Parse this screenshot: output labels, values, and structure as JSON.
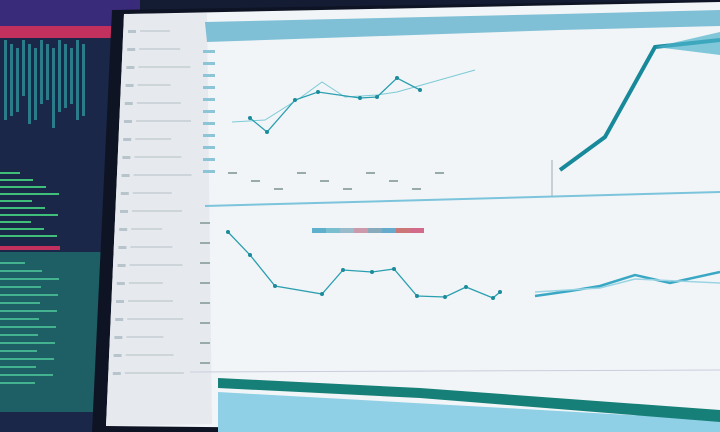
{
  "colors": {
    "background_monitor": "#1a2748",
    "accent_pink": "#c2305e",
    "accent_teal": "#1b8c9c",
    "accent_green": "#2fa07a",
    "screen": "#f2f5f7",
    "header_band": "#5fb0cc",
    "sidebar": "#e4e8ec",
    "chart_line": "#2a9fb0",
    "bottom_band_dark": "#168078",
    "bottom_band_light": "#8fd0e6"
  }
}
